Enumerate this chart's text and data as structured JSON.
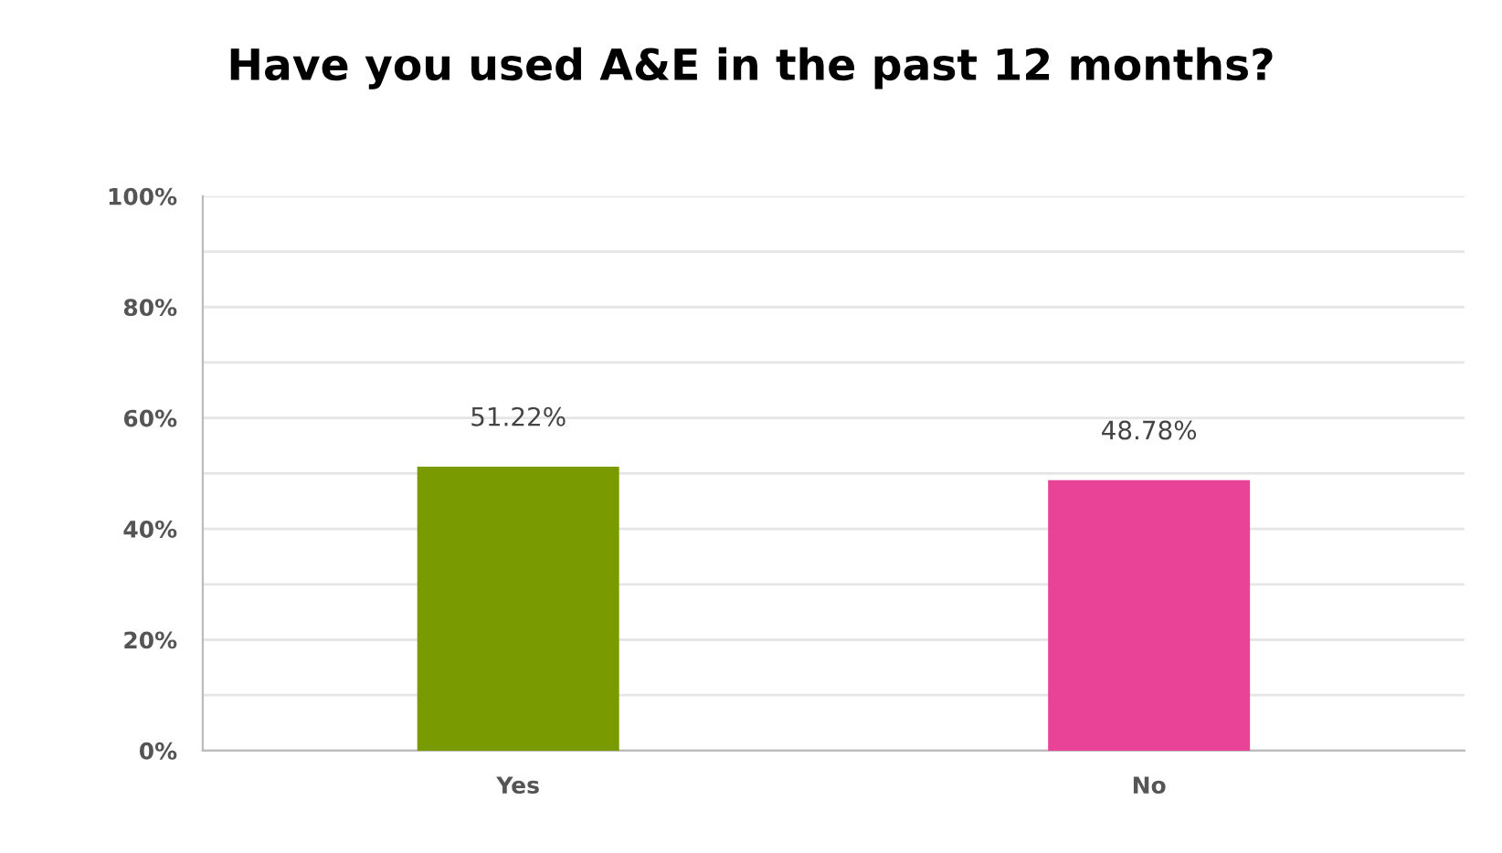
{
  "chart_data": {
    "type": "bar",
    "title": "Have you used A&E in the past 12 months?",
    "categories": [
      "Yes",
      "No"
    ],
    "values": [
      51.22,
      48.78
    ],
    "colors": [
      "#7a9a01",
      "#e84396"
    ],
    "value_labels": [
      "51.22%",
      "48.78%"
    ],
    "ylim": [
      0,
      100
    ],
    "yticks": [
      {
        "value": 0,
        "label": "0%"
      },
      {
        "value": 10,
        "label": null
      },
      {
        "value": 20,
        "label": "20%"
      },
      {
        "value": 30,
        "label": null
      },
      {
        "value": 40,
        "label": "40%"
      },
      {
        "value": 50,
        "label": null
      },
      {
        "value": 60,
        "label": "60%"
      },
      {
        "value": 70,
        "label": null
      },
      {
        "value": 80,
        "label": "80%"
      },
      {
        "value": 90,
        "label": null
      },
      {
        "value": 100,
        "label": "100%"
      }
    ],
    "grid": "y"
  }
}
